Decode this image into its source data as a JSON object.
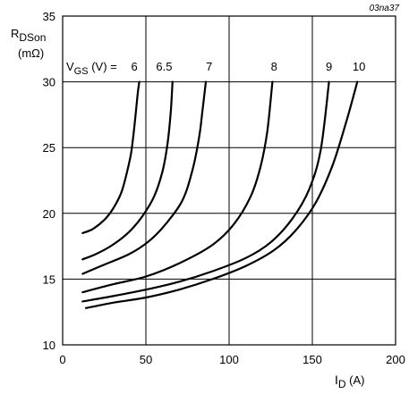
{
  "figure_code": "03na37",
  "chart_data": {
    "type": "line",
    "xlabel": {
      "main": "I",
      "sub": "D",
      "unit": " (A)"
    },
    "ylabel": {
      "main": "R",
      "sub": "DSon",
      "unit": "(mΩ)"
    },
    "xlim": [
      0,
      200
    ],
    "ylim": [
      10,
      35
    ],
    "x_ticks": [
      "0",
      "50",
      "100",
      "150",
      "200"
    ],
    "y_ticks": [
      "10",
      "15",
      "20",
      "25",
      "30",
      "35"
    ],
    "grid": true,
    "legend_prefix": {
      "main": "V",
      "sub": "GS",
      "rest": " (V) = "
    },
    "series": [
      {
        "name": "6",
        "points": [
          [
            12,
            18.5
          ],
          [
            18,
            18.8
          ],
          [
            25,
            19.5
          ],
          [
            30,
            20.3
          ],
          [
            35,
            21.5
          ],
          [
            38,
            22.8
          ],
          [
            41,
            24.5
          ],
          [
            43,
            26.5
          ],
          [
            45,
            29
          ],
          [
            46,
            30
          ]
        ]
      },
      {
        "name": "6.5",
        "points": [
          [
            12,
            16.5
          ],
          [
            20,
            16.9
          ],
          [
            30,
            17.6
          ],
          [
            40,
            18.6
          ],
          [
            48,
            19.8
          ],
          [
            55,
            21.3
          ],
          [
            60,
            23.2
          ],
          [
            63,
            25.3
          ],
          [
            65,
            27.8
          ],
          [
            66,
            30
          ]
        ]
      },
      {
        "name": "7",
        "points": [
          [
            12,
            15.4
          ],
          [
            25,
            16.1
          ],
          [
            40,
            16.9
          ],
          [
            52,
            17.9
          ],
          [
            62,
            19.2
          ],
          [
            72,
            21
          ],
          [
            78,
            23.3
          ],
          [
            82,
            25.8
          ],
          [
            84,
            27.8
          ],
          [
            86,
            30
          ]
        ]
      },
      {
        "name": "8",
        "points": [
          [
            12,
            14
          ],
          [
            30,
            14.6
          ],
          [
            50,
            15.2
          ],
          [
            70,
            16.2
          ],
          [
            90,
            17.6
          ],
          [
            103,
            19.2
          ],
          [
            113,
            21.3
          ],
          [
            119,
            23.6
          ],
          [
            123,
            26.3
          ],
          [
            126,
            30
          ]
        ]
      },
      {
        "name": "9",
        "points": [
          [
            12,
            13.3
          ],
          [
            30,
            13.7
          ],
          [
            50,
            14.2
          ],
          [
            70,
            14.8
          ],
          [
            90,
            15.6
          ],
          [
            110,
            16.6
          ],
          [
            125,
            17.8
          ],
          [
            138,
            19.6
          ],
          [
            148,
            21.8
          ],
          [
            155,
            24.8
          ],
          [
            160,
            30
          ]
        ]
      },
      {
        "name": "10",
        "points": [
          [
            14,
            12.8
          ],
          [
            30,
            13.2
          ],
          [
            50,
            13.6
          ],
          [
            70,
            14.2
          ],
          [
            90,
            15
          ],
          [
            110,
            16
          ],
          [
            127,
            17.2
          ],
          [
            140,
            18.7
          ],
          [
            152,
            20.8
          ],
          [
            162,
            23.6
          ],
          [
            170,
            26.8
          ],
          [
            177,
            30
          ]
        ]
      }
    ]
  }
}
